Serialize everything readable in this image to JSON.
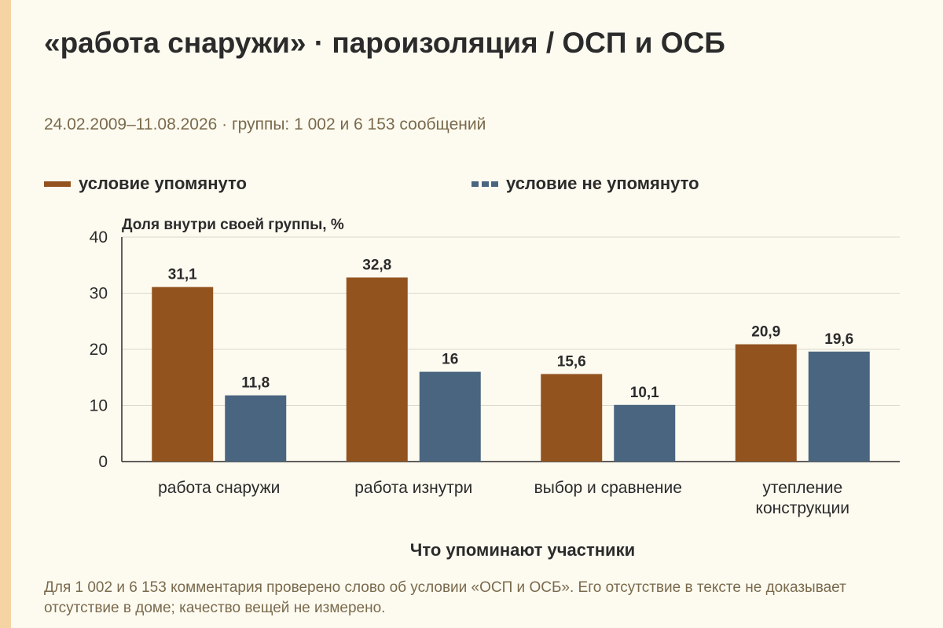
{
  "colors": {
    "background": "#fdfbf0",
    "side_strip": "#f5d3a3",
    "series_mentioned": "#93531f",
    "series_not_mentioned": "#4a6580",
    "gridline": "#dcd8cc",
    "axis": "#2b2b2b",
    "muted_text": "#7a6a4d"
  },
  "header": {
    "title": "«работа снаружи» · пароизоляция / ОСП и ОСБ",
    "subtitle": "24.02.2009–11.08.2026 · группы: 1 002 и 6 153 сообщений"
  },
  "legend": {
    "items": [
      {
        "label": "условие упомянуто",
        "swatch": "solid"
      },
      {
        "label": "условие не упомянуто",
        "swatch": "dashed"
      }
    ]
  },
  "chart_data": {
    "type": "bar",
    "title": "«работа снаружи» · пароизоляция / ОСП и ОСБ",
    "subtitle": "24.02.2009–11.08.2026 · группы: 1 002 и 6 153 сообщений",
    "ylabel": "Доля внутри своей группы, %",
    "xlabel": "Что упоминают участники",
    "ylim": [
      0,
      40
    ],
    "yticks": [
      0,
      10,
      20,
      30,
      40
    ],
    "grid": true,
    "legend_position": "top",
    "categories": [
      "работа снаружи",
      "работа изнутри",
      "выбор и сравнение",
      "утепление конструкции"
    ],
    "category_lines": [
      [
        "работа снаружи"
      ],
      [
        "работа изнутри"
      ],
      [
        "выбор и сравнение"
      ],
      [
        "утепление",
        "конструкции"
      ]
    ],
    "series": [
      {
        "name": "условие упомянуто",
        "values": [
          31.1,
          32.8,
          15.6,
          20.9
        ],
        "labels": [
          "31,1",
          "32,8",
          "15,6",
          "20,9"
        ]
      },
      {
        "name": "условие не упомянуто",
        "values": [
          11.8,
          16,
          10.1,
          19.6
        ],
        "labels": [
          "11,8",
          "16",
          "10,1",
          "19,6"
        ]
      }
    ]
  },
  "footnote": "Для 1 002 и 6 153 комментария проверено слово об условии «ОСП и ОСБ». Его отсутствие в тексте не доказывает отсутствие в доме; качество вещей не измерено."
}
